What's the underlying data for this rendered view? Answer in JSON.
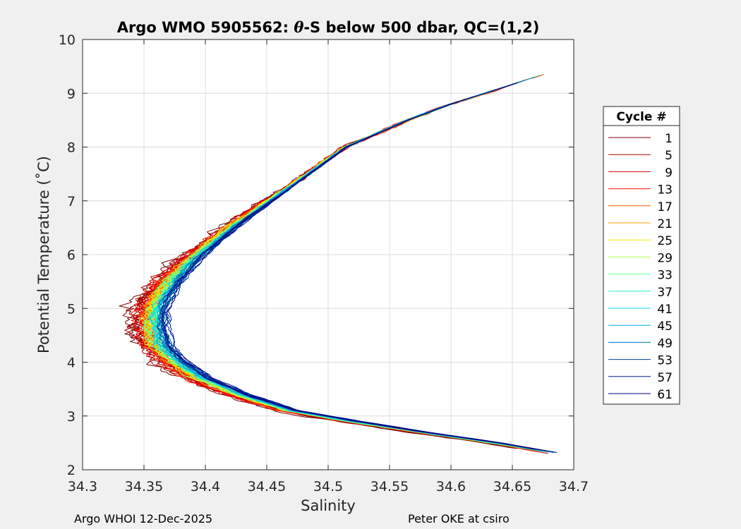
{
  "chart_data": {
    "type": "line",
    "title_prefix": "Argo WMO 5905562: ",
    "title_theta": "θ",
    "title_suffix": "-S below 500 dbar,  QC=(1,2)",
    "xlabel": "Salinity",
    "ylabel": "Potential Temperature (˚C)",
    "xlim": [
      34.3,
      34.7
    ],
    "ylim": [
      2,
      10
    ],
    "xticks": [
      "34.3",
      "34.35",
      "34.4",
      "34.45",
      "34.5",
      "34.55",
      "34.6",
      "34.65",
      "34.7"
    ],
    "yticks": [
      "2",
      "3",
      "4",
      "5",
      "6",
      "7",
      "8",
      "9",
      "10"
    ],
    "grid": true,
    "legend": {
      "title": "Cycle #",
      "position": "right",
      "entries": [
        {
          "label": "1",
          "color": "#800000"
        },
        {
          "label": "5",
          "color": "#a80000"
        },
        {
          "label": "9",
          "color": "#d40000"
        },
        {
          "label": "13",
          "color": "#ff1000"
        },
        {
          "label": "17",
          "color": "#ff5a00"
        },
        {
          "label": "21",
          "color": "#ffa000"
        },
        {
          "label": "25",
          "color": "#f0f000"
        },
        {
          "label": "29",
          "color": "#b0ff40"
        },
        {
          "label": "33",
          "color": "#60ff90"
        },
        {
          "label": "37",
          "color": "#20f0c0"
        },
        {
          "label": "41",
          "color": "#00d8f0"
        },
        {
          "label": "45",
          "color": "#00a8e0"
        },
        {
          "label": "49",
          "color": "#0070c0"
        },
        {
          "label": "53",
          "color": "#0040a0"
        },
        {
          "label": "57",
          "color": "#001890"
        },
        {
          "label": "61",
          "color": "#000080"
        }
      ]
    },
    "series_base_profile": {
      "temperature": [
        9.35,
        9.2,
        9.0,
        8.8,
        8.5,
        8.2,
        8.0,
        7.5,
        7.0,
        6.5,
        6.0,
        5.5,
        5.0,
        4.6,
        4.3,
        4.0,
        3.7,
        3.4,
        3.1,
        2.9,
        2.7,
        2.5,
        2.3
      ],
      "salinity": [
        34.675,
        34.655,
        34.628,
        34.6,
        34.565,
        34.535,
        34.515,
        34.485,
        34.455,
        34.425,
        34.4,
        34.38,
        34.368,
        34.368,
        34.372,
        34.385,
        34.405,
        34.435,
        34.475,
        34.525,
        34.58,
        34.64,
        34.69
      ]
    }
  },
  "footer": {
    "left": "Argo WHOI 12-Dec-2025",
    "right": "Peter OKE at csiro"
  }
}
